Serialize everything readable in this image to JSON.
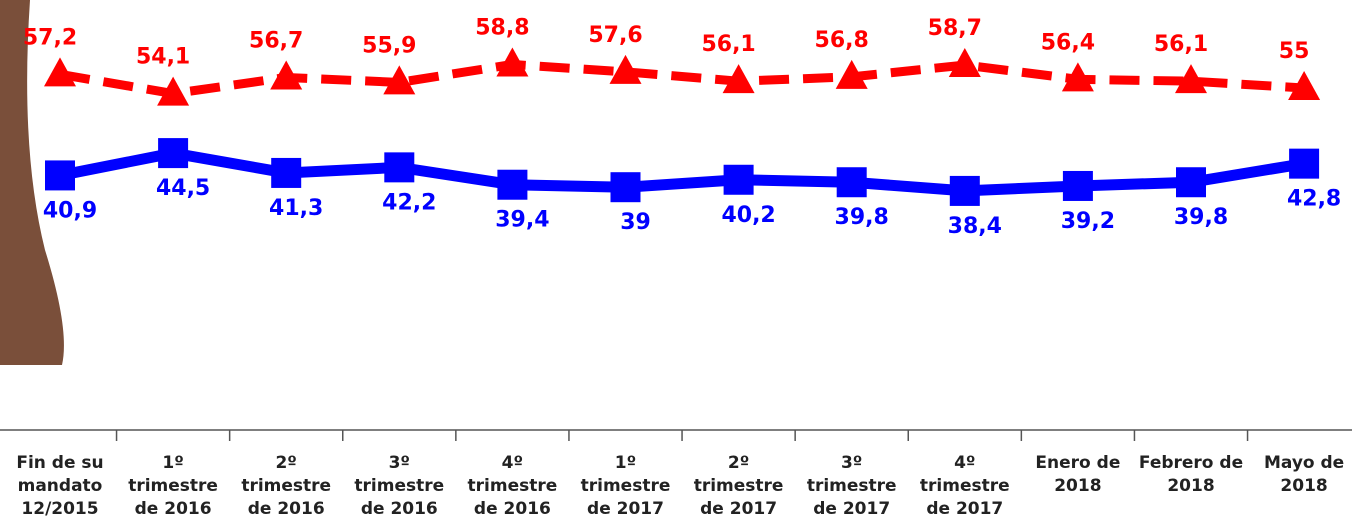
{
  "chart_data": {
    "type": "line",
    "categories": [
      "Fin de su mandato 12/2015",
      "1º trimestre de 2016",
      "2º trimestre de 2016",
      "3º trimestre de 2016",
      "4º trimestre de 2016",
      "1º trimestre de 2017",
      "2º trimestre de 2017",
      "3º trimestre de 2017",
      "4º trimestre de 2017",
      "Enero de 2018",
      "Febrero de 2018",
      "Mayo de 2018"
    ],
    "series": [
      {
        "color": "#ff0000",
        "marker": "triangle",
        "dashed": true,
        "values": [
          57.2,
          54.1,
          56.7,
          55.9,
          58.8,
          57.6,
          56.1,
          56.8,
          58.7,
          56.4,
          56.1,
          55
        ],
        "value_labels": [
          "57,2",
          "54,1",
          "56,7",
          "55,9",
          "58,8",
          "57,6",
          "56,1",
          "56,8",
          "58,7",
          "56,4",
          "56,1",
          "55"
        ]
      },
      {
        "color": "#0000ff",
        "marker": "square",
        "dashed": false,
        "values": [
          40.9,
          44.5,
          41.3,
          42.2,
          39.4,
          39,
          40.2,
          39.8,
          38.4,
          39.2,
          39.8,
          42.8
        ],
        "value_labels": [
          "40,9",
          "44,5",
          "41,3",
          "42,2",
          "39,4",
          "39",
          "40,2",
          "39,8",
          "38,4",
          "39,2",
          "39,8",
          "42,8"
        ]
      }
    ],
    "ylim": [
      30,
      65
    ]
  }
}
